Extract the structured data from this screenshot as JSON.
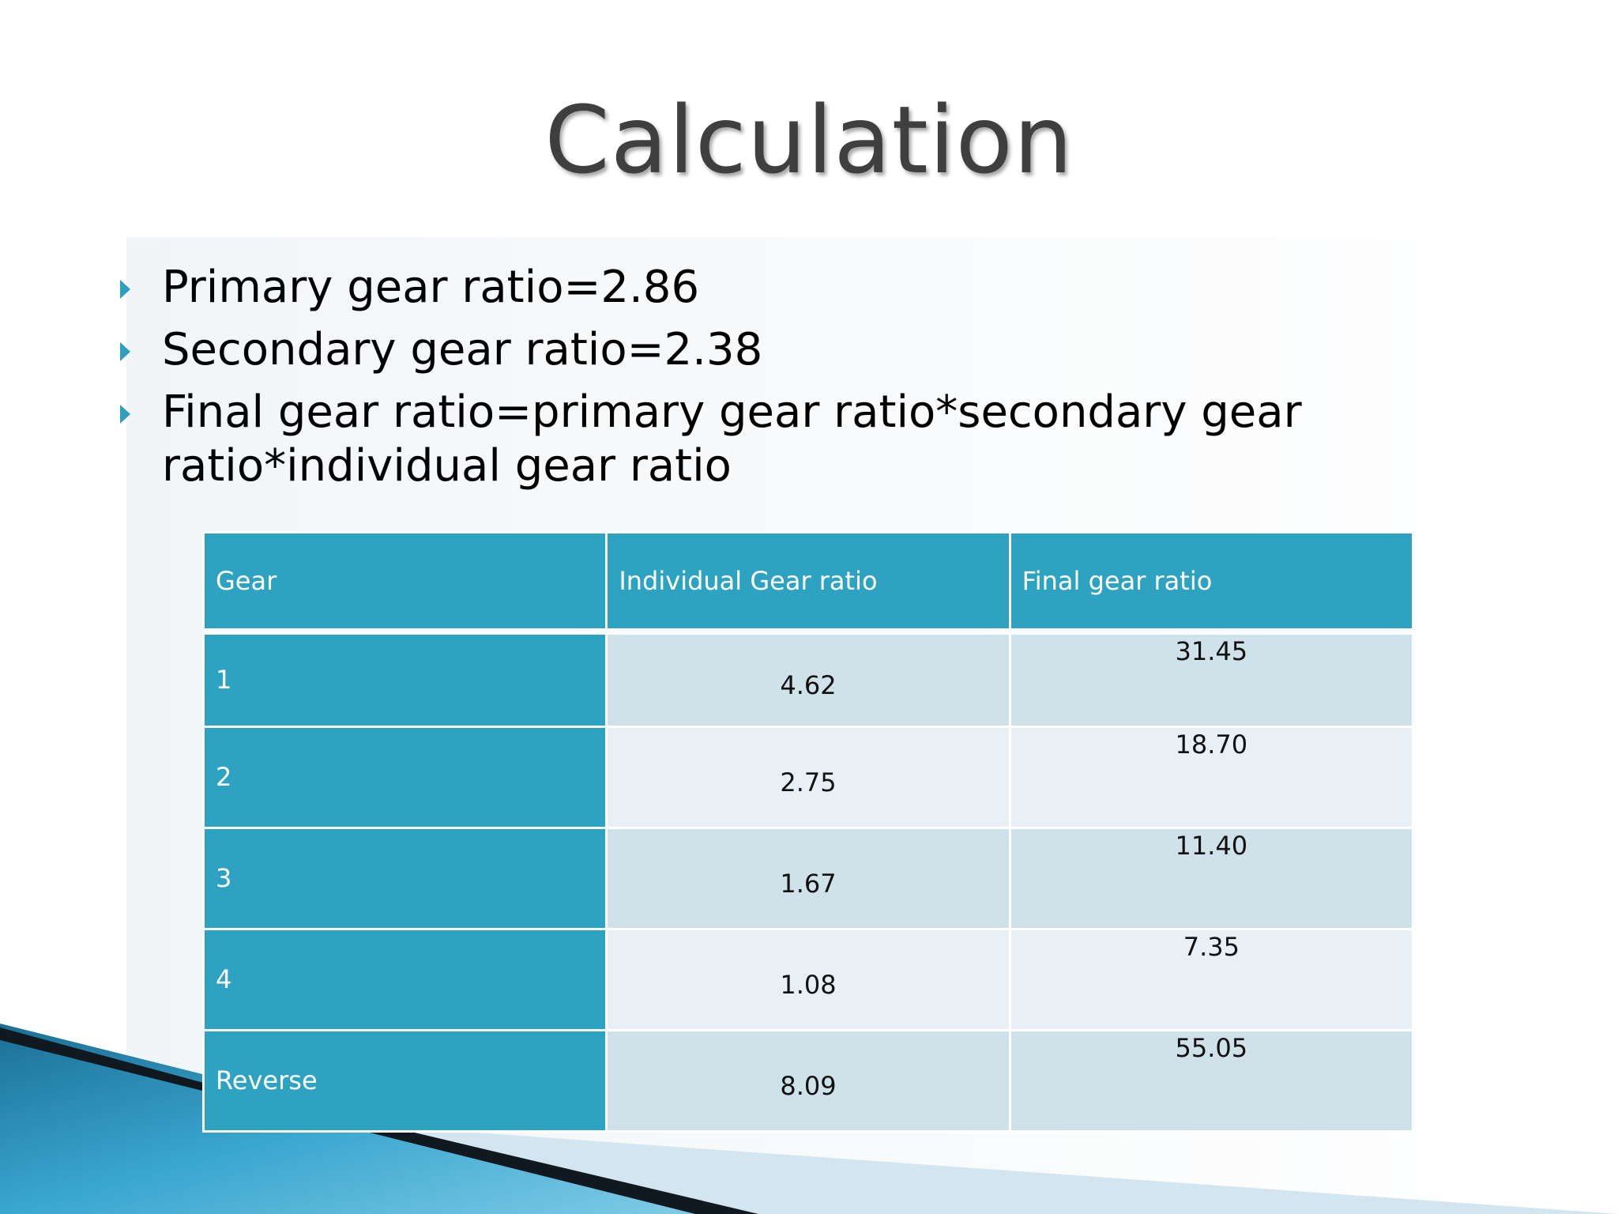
{
  "slide": {
    "title": "Calculation",
    "bullets": [
      "Primary gear ratio=2.86",
      "Secondary gear ratio=2.38",
      "Final gear ratio=primary gear ratio*secondary gear ratio*individual gear ratio"
    ],
    "bullet_icon": "triangle-bullet-icon",
    "accent_color": "#2ea3c1"
  },
  "table": {
    "headers": [
      "Gear",
      "Individual Gear ratio",
      "Final gear ratio"
    ],
    "rows": [
      [
        "1",
        "4.62",
        "31.45"
      ],
      [
        "2",
        "2.75",
        "18.70"
      ],
      [
        "3",
        "1.67",
        "11.40"
      ],
      [
        "4",
        "1.08",
        "7.35"
      ],
      [
        "Reverse",
        "8.09",
        "55.05"
      ]
    ]
  }
}
